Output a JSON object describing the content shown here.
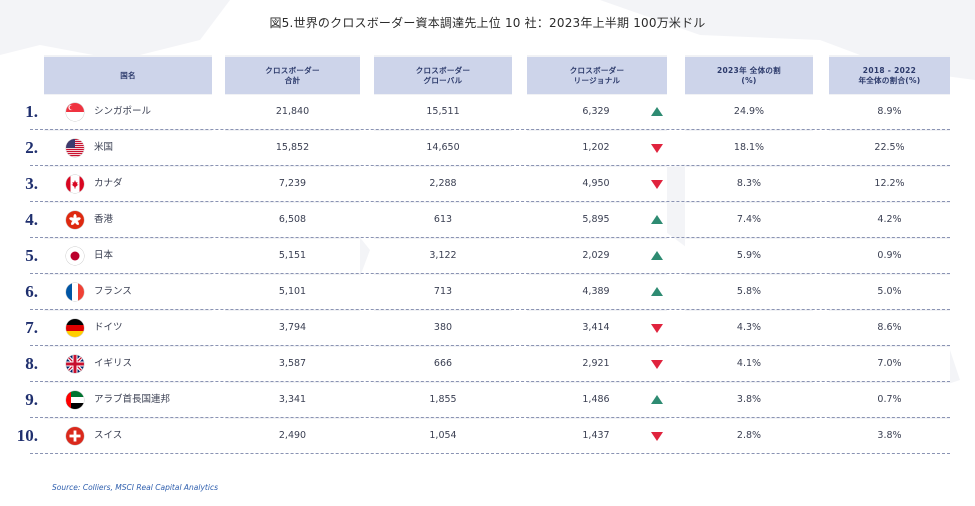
{
  "title": "図5.世界のクロスボーダー資本調達先上位 10 社：2023年上半期 100万米ドル",
  "colors": {
    "header_bg": "#cdd4ea",
    "header_text": "#2c3a6b",
    "column_bg": "#f1f2f5",
    "rank_text": "#1f2f6e",
    "arrow_up": "#2e8b72",
    "arrow_down": "#e0233d",
    "source_text": "#2f5fae"
  },
  "chart_data": {
    "type": "table",
    "columns": [
      "国名",
      "クロスボーダー\n合計",
      "クロスボーダー\nグローバル",
      "クロスボーダー\nリージョナル",
      "2023年 全体の割\n(%)",
      "2018 - 2022\n年全体の割合(%)"
    ],
    "rows": [
      {
        "rank": "1.",
        "flag": "sg-flag-icon",
        "country": "シンガポール",
        "total": "21,840",
        "global": "15,511",
        "regional": "6,329",
        "trend": "up",
        "share_2023": "24.9%",
        "share_2018_2022": "8.9%"
      },
      {
        "rank": "2.",
        "flag": "us-flag-icon",
        "country": "米国",
        "total": "15,852",
        "global": "14,650",
        "regional": "1,202",
        "trend": "down",
        "share_2023": "18.1%",
        "share_2018_2022": "22.5%"
      },
      {
        "rank": "3.",
        "flag": "ca-flag-icon",
        "country": "カナダ",
        "total": "7,239",
        "global": "2,288",
        "regional": "4,950",
        "trend": "down",
        "share_2023": "8.3%",
        "share_2018_2022": "12.2%"
      },
      {
        "rank": "4.",
        "flag": "hk-flag-icon",
        "country": "香港",
        "total": "6,508",
        "global": "613",
        "regional": "5,895",
        "trend": "up",
        "share_2023": "7.4%",
        "share_2018_2022": "4.2%"
      },
      {
        "rank": "5.",
        "flag": "jp-flag-icon",
        "country": "日本",
        "total": "5,151",
        "global": "3,122",
        "regional": "2,029",
        "trend": "up",
        "share_2023": "5.9%",
        "share_2018_2022": "0.9%"
      },
      {
        "rank": "6.",
        "flag": "fr-flag-icon",
        "country": "フランス",
        "total": "5,101",
        "global": "713",
        "regional": "4,389",
        "trend": "up",
        "share_2023": "5.8%",
        "share_2018_2022": "5.0%"
      },
      {
        "rank": "7.",
        "flag": "de-flag-icon",
        "country": "ドイツ",
        "total": "3,794",
        "global": "380",
        "regional": "3,414",
        "trend": "down",
        "share_2023": "4.3%",
        "share_2018_2022": "8.6%"
      },
      {
        "rank": "8.",
        "flag": "gb-flag-icon",
        "country": "イギリス",
        "total": "3,587",
        "global": "666",
        "regional": "2,921",
        "trend": "down",
        "share_2023": "4.1%",
        "share_2018_2022": "7.0%"
      },
      {
        "rank": "9.",
        "flag": "ae-flag-icon",
        "country": "アラブ首長国連邦",
        "total": "3,341",
        "global": "1,855",
        "regional": "1,486",
        "trend": "up",
        "share_2023": "3.8%",
        "share_2018_2022": "0.7%"
      },
      {
        "rank": "10.",
        "flag": "ch-flag-icon",
        "country": "スイス",
        "total": "2,490",
        "global": "1,054",
        "regional": "1,437",
        "trend": "down",
        "share_2023": "2.8%",
        "share_2018_2022": "3.8%"
      }
    ]
  },
  "source": "Source: Colliers, MSCI Real Capital Analytics"
}
